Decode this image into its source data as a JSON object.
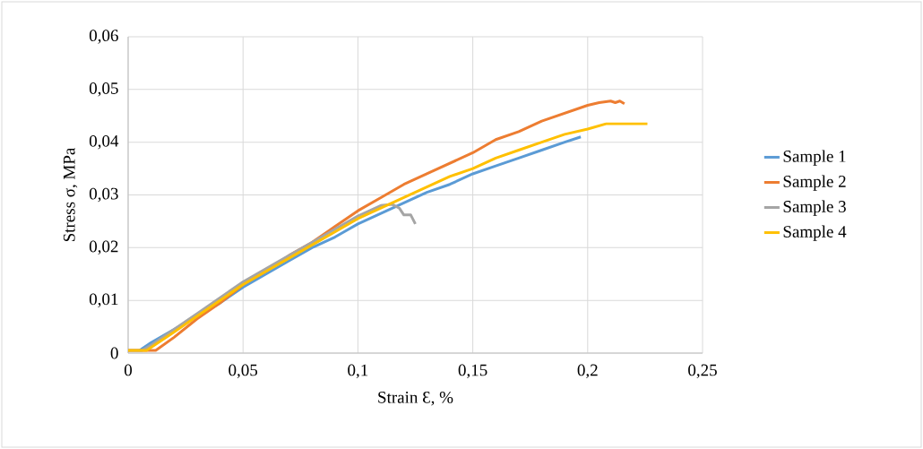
{
  "chart_data": {
    "type": "line",
    "xlabel": "Strain Ɛ, %",
    "ylabel": "Stress σ, MPa",
    "series": [
      {
        "name": "Sample 1",
        "color": "#5b9bd5",
        "x": [
          0.005,
          0.01,
          0.02,
          0.03,
          0.04,
          0.05,
          0.06,
          0.07,
          0.08,
          0.09,
          0.1,
          0.11,
          0.12,
          0.13,
          0.14,
          0.15,
          0.16,
          0.17,
          0.18,
          0.19,
          0.197
        ],
        "values": [
          0.0005,
          0.002,
          0.0045,
          0.007,
          0.0095,
          0.0125,
          0.015,
          0.0175,
          0.02,
          0.022,
          0.0245,
          0.0265,
          0.0285,
          0.0305,
          0.032,
          0.034,
          0.0355,
          0.037,
          0.0385,
          0.04,
          0.041
        ]
      },
      {
        "name": "Sample 2",
        "color": "#ed7d31",
        "x": [
          0,
          0.012,
          0.02,
          0.03,
          0.04,
          0.05,
          0.06,
          0.07,
          0.08,
          0.09,
          0.1,
          0.11,
          0.12,
          0.13,
          0.14,
          0.15,
          0.16,
          0.17,
          0.18,
          0.19,
          0.2,
          0.205,
          0.21,
          0.212,
          0.214,
          0.216
        ],
        "values": [
          0.0005,
          0.0005,
          0.003,
          0.0065,
          0.0095,
          0.013,
          0.0155,
          0.0185,
          0.021,
          0.024,
          0.027,
          0.0295,
          0.032,
          0.034,
          0.036,
          0.038,
          0.0405,
          0.042,
          0.044,
          0.0455,
          0.047,
          0.0475,
          0.0478,
          0.0475,
          0.0478,
          0.0473
        ]
      },
      {
        "name": "Sample 3",
        "color": "#a5a5a5",
        "x": [
          0,
          0.006,
          0.01,
          0.02,
          0.03,
          0.04,
          0.05,
          0.06,
          0.07,
          0.08,
          0.09,
          0.1,
          0.11,
          0.115,
          0.118,
          0.12,
          0.123,
          0.125
        ],
        "values": [
          0.0005,
          0.0005,
          0.0015,
          0.0045,
          0.0075,
          0.0105,
          0.0135,
          0.016,
          0.0185,
          0.021,
          0.0235,
          0.026,
          0.028,
          0.0282,
          0.0275,
          0.0262,
          0.0262,
          0.0245
        ]
      },
      {
        "name": "Sample 4",
        "color": "#ffc000",
        "x": [
          0,
          0.008,
          0.02,
          0.03,
          0.04,
          0.05,
          0.06,
          0.07,
          0.08,
          0.09,
          0.1,
          0.11,
          0.12,
          0.13,
          0.14,
          0.15,
          0.16,
          0.17,
          0.18,
          0.19,
          0.2,
          0.208,
          0.226
        ],
        "values": [
          0.0005,
          0.0005,
          0.004,
          0.007,
          0.01,
          0.013,
          0.0155,
          0.018,
          0.0205,
          0.023,
          0.0255,
          0.0275,
          0.0295,
          0.0315,
          0.0335,
          0.035,
          0.037,
          0.0385,
          0.04,
          0.0415,
          0.0425,
          0.0435,
          0.0435
        ]
      }
    ],
    "xlim": [
      0,
      0.25
    ],
    "ylim": [
      0,
      0.06
    ],
    "xticks": [
      0,
      {
        "value": 0.05,
        "label": "0,05"
      },
      {
        "value": 0.1,
        "label": "0,1"
      },
      {
        "value": 0.15,
        "label": "0,15"
      },
      {
        "value": 0.2,
        "label": "0,2"
      },
      {
        "value": 0.25,
        "label": "0,25"
      }
    ],
    "yticks": [
      0,
      {
        "value": 0.01,
        "label": "0,01"
      },
      {
        "value": 0.02,
        "label": "0,02"
      },
      {
        "value": 0.03,
        "label": "0,03"
      },
      {
        "value": 0.04,
        "label": "0,04"
      },
      {
        "value": 0.05,
        "label": "0,05"
      },
      {
        "value": 0.06,
        "label": "0,06"
      }
    ],
    "grid": true,
    "legend": "right",
    "marker": "none",
    "line_style": "solid"
  }
}
